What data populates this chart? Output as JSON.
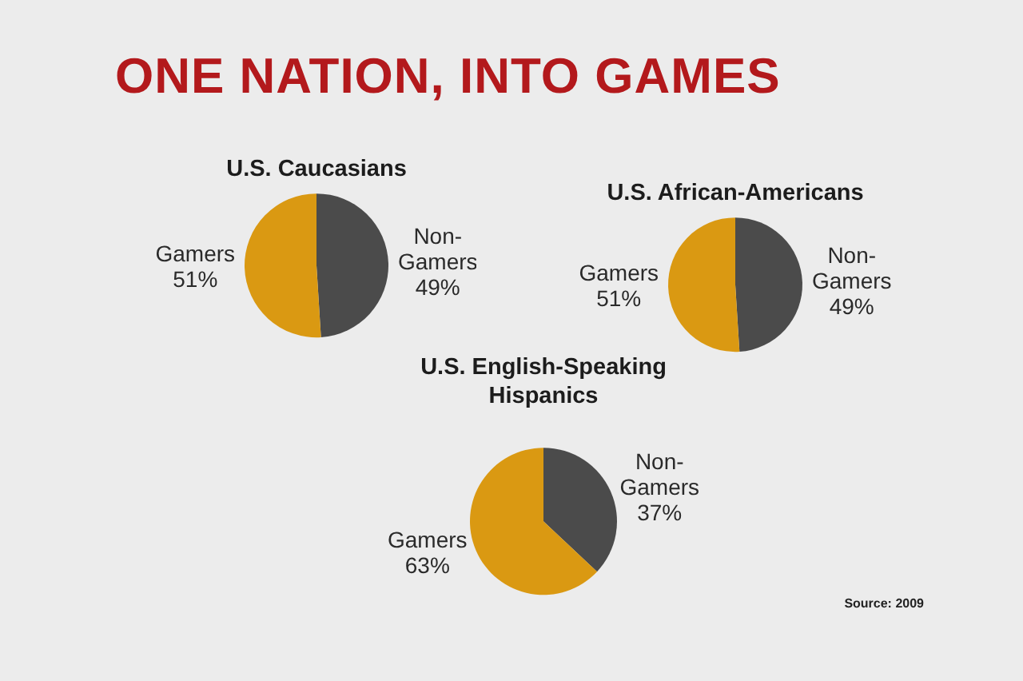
{
  "chart_data": [
    {
      "type": "other",
      "title": "ONE NATION, INTO GAMES"
    },
    {
      "type": "pie",
      "title": "U.S. Caucasians",
      "categories": [
        "Non-Gamers",
        "Gamers"
      ],
      "values": [
        49,
        51
      ],
      "value_labels": [
        "49%",
        "51%"
      ],
      "colors": [
        "#4b4b4b",
        "#da9912"
      ]
    },
    {
      "type": "pie",
      "title": "U.S. African-Americans",
      "categories": [
        "Non-Gamers",
        "Gamers"
      ],
      "values": [
        49,
        51
      ],
      "value_labels": [
        "49%",
        "51%"
      ],
      "colors": [
        "#4b4b4b",
        "#da9912"
      ]
    },
    {
      "type": "pie",
      "title": "U.S. English-Speaking Hispanics",
      "categories": [
        "Non-Gamers",
        "Gamers"
      ],
      "values": [
        37,
        63
      ],
      "value_labels": [
        "37%",
        "63%"
      ],
      "colors": [
        "#4b4b4b",
        "#da9912"
      ],
      "annotations": [
        "Source: 2009"
      ]
    }
  ]
}
